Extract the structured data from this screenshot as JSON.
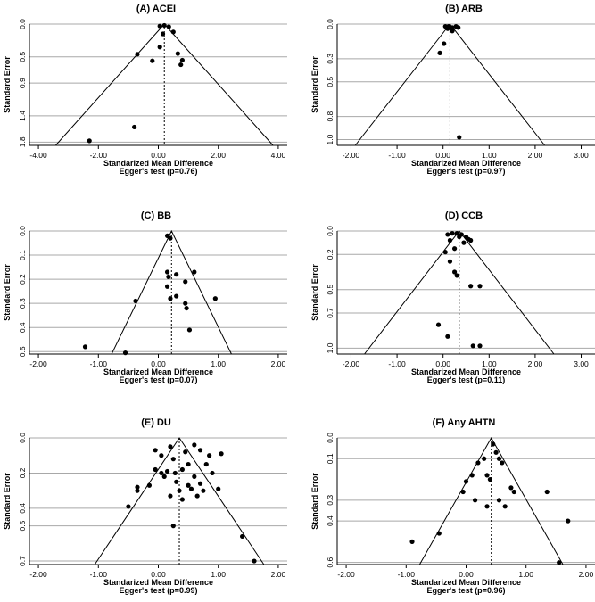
{
  "chart_data": [
    {
      "type": "scatter",
      "title": "(A) ACEI",
      "xlabel": "Standarized Mean Difference",
      "ylabel": "Standard Error",
      "egger": "Egger's test (p=0.76)",
      "xlim": [
        -4.3,
        4.3
      ],
      "ylim": [
        0,
        1.85
      ],
      "xticks": [
        -4,
        -2,
        0,
        2,
        4
      ],
      "xtick_labels": [
        "-4.00",
        "-2.00",
        "0.00",
        "2.00",
        "4.00"
      ],
      "yticks": [
        0,
        0.5,
        0.9,
        1.4,
        1.8
      ],
      "ytick_labels": [
        "0.0",
        "0.5",
        "0.9",
        "1.4",
        "1.8"
      ],
      "pooled": 0.2,
      "points": [
        [
          0.05,
          0.03
        ],
        [
          0.2,
          0.02
        ],
        [
          0.35,
          0.04
        ],
        [
          0.5,
          0.12
        ],
        [
          0.15,
          0.15
        ],
        [
          0.05,
          0.35
        ],
        [
          0.65,
          0.45
        ],
        [
          0.8,
          0.55
        ],
        [
          0.75,
          0.62
        ],
        [
          -0.2,
          0.56
        ],
        [
          -0.7,
          0.46
        ],
        [
          -0.8,
          1.57
        ],
        [
          -2.3,
          1.78
        ]
      ]
    },
    {
      "type": "scatter",
      "title": "(B) ARB",
      "xlabel": "Standarized Mean Difference",
      "ylabel": "Standard Error",
      "egger": "Egger's test (p=0.97)",
      "xlim": [
        -2.3,
        3.3
      ],
      "ylim": [
        0,
        1.05
      ],
      "xticks": [
        -2,
        -1,
        0,
        1,
        2,
        3
      ],
      "xtick_labels": [
        "-2.00",
        "-1.00",
        "0.00",
        "1.00",
        "2.00",
        "3.00"
      ],
      "yticks": [
        0,
        0.3,
        0.5,
        0.8,
        1.0
      ],
      "ytick_labels": [
        "0.0",
        "0.3",
        "0.5",
        "0.8",
        "1.0"
      ],
      "pooled": 0.15,
      "points": [
        [
          0.05,
          0.02
        ],
        [
          0.12,
          0.02
        ],
        [
          0.2,
          0.03
        ],
        [
          0.28,
          0.02
        ],
        [
          0.33,
          0.03
        ],
        [
          0.1,
          0.04
        ],
        [
          0.2,
          0.06
        ],
        [
          0.02,
          0.17
        ],
        [
          -0.07,
          0.25
        ],
        [
          0.35,
          0.98
        ]
      ]
    },
    {
      "type": "scatter",
      "title": "(C) BB",
      "xlabel": "Standarized Mean Difference",
      "ylabel": "Standard Error",
      "egger": "Egger's test (p=0.07)",
      "xlim": [
        -2.15,
        2.15
      ],
      "ylim": [
        0,
        0.51
      ],
      "xticks": [
        -2,
        -1,
        0,
        1,
        2
      ],
      "xtick_labels": [
        "-2.00",
        "-1.00",
        "0.00",
        "1.00",
        "2.00"
      ],
      "yticks": [
        0,
        0.1,
        0.2,
        0.3,
        0.4,
        0.5
      ],
      "ytick_labels": [
        "0.0",
        "0.1",
        "0.2",
        "0.3",
        "0.4",
        "0.5"
      ],
      "pooled": 0.22,
      "points": [
        [
          0.15,
          0.02
        ],
        [
          0.2,
          0.03
        ],
        [
          0.15,
          0.17
        ],
        [
          0.17,
          0.19
        ],
        [
          0.3,
          0.18
        ],
        [
          0.6,
          0.17
        ],
        [
          0.45,
          0.21
        ],
        [
          0.15,
          0.23
        ],
        [
          0.2,
          0.28
        ],
        [
          0.3,
          0.27
        ],
        [
          0.45,
          0.3
        ],
        [
          0.47,
          0.32
        ],
        [
          0.95,
          0.28
        ],
        [
          -0.38,
          0.29
        ],
        [
          0.52,
          0.41
        ],
        [
          -1.22,
          0.48
        ],
        [
          -0.55,
          0.505
        ]
      ]
    },
    {
      "type": "scatter",
      "title": "(D) CCB",
      "xlabel": "Standarized Mean Difference",
      "ylabel": "Standard Error",
      "egger": "Egger's test (p=0.11)",
      "xlim": [
        -2.3,
        3.3
      ],
      "ylim": [
        0,
        1.05
      ],
      "xticks": [
        -2,
        -1,
        0,
        1,
        2,
        3
      ],
      "xtick_labels": [
        "-2.00",
        "-1.00",
        "0.00",
        "1.00",
        "2.00",
        "3.00"
      ],
      "yticks": [
        0,
        0.2,
        0.5,
        0.7,
        1.0
      ],
      "ytick_labels": [
        "0.0",
        "0.2",
        "0.5",
        "0.7",
        "1.0"
      ],
      "pooled": 0.35,
      "points": [
        [
          0.1,
          0.03
        ],
        [
          0.2,
          0.02
        ],
        [
          0.3,
          0.02
        ],
        [
          0.4,
          0.03
        ],
        [
          0.5,
          0.05
        ],
        [
          0.55,
          0.07
        ],
        [
          0.35,
          0.05
        ],
        [
          0.15,
          0.08
        ],
        [
          0.45,
          0.1
        ],
        [
          0.6,
          0.08
        ],
        [
          0.25,
          0.15
        ],
        [
          0.05,
          0.18
        ],
        [
          0.15,
          0.26
        ],
        [
          0.25,
          0.35
        ],
        [
          0.3,
          0.38
        ],
        [
          0.6,
          0.47
        ],
        [
          0.8,
          0.47
        ],
        [
          -0.1,
          0.8
        ],
        [
          0.1,
          0.9
        ],
        [
          0.65,
          0.98
        ],
        [
          0.8,
          0.98
        ]
      ]
    },
    {
      "type": "scatter",
      "title": "(E) DU",
      "xlabel": "Standarized Mean Difference",
      "ylabel": "Standard Error",
      "egger": "Egger's test (p=0.99)",
      "xlim": [
        -2.15,
        2.15
      ],
      "ylim": [
        0,
        0.72
      ],
      "xticks": [
        -2,
        -1,
        0,
        1,
        2
      ],
      "xtick_labels": [
        "-2.00",
        "-1.00",
        "0.00",
        "1.00",
        "2.00"
      ],
      "yticks": [
        0,
        0.2,
        0.4,
        0.5,
        0.7
      ],
      "ytick_labels": [
        "0.0",
        "0.2",
        "0.4",
        "0.5",
        "0.7"
      ],
      "pooled": 0.35,
      "points": [
        [
          -0.05,
          0.07
        ],
        [
          0.2,
          0.05
        ],
        [
          0.45,
          0.08
        ],
        [
          0.6,
          0.04
        ],
        [
          0.7,
          0.07
        ],
        [
          0.85,
          0.1
        ],
        [
          1.05,
          0.09
        ],
        [
          0.05,
          0.1
        ],
        [
          0.25,
          0.12
        ],
        [
          0.5,
          0.15
        ],
        [
          0.8,
          0.15
        ],
        [
          -0.05,
          0.18
        ],
        [
          0.05,
          0.2
        ],
        [
          0.15,
          0.19
        ],
        [
          0.28,
          0.2
        ],
        [
          0.4,
          0.18
        ],
        [
          0.6,
          0.22
        ],
        [
          0.9,
          0.2
        ],
        [
          0.1,
          0.22
        ],
        [
          0.3,
          0.25
        ],
        [
          0.5,
          0.27
        ],
        [
          0.7,
          0.26
        ],
        [
          -0.15,
          0.27
        ],
        [
          0.35,
          0.3
        ],
        [
          0.55,
          0.29
        ],
        [
          0.75,
          0.3
        ],
        [
          1.0,
          0.29
        ],
        [
          -0.35,
          0.3
        ],
        [
          -0.35,
          0.28
        ],
        [
          0.2,
          0.33
        ],
        [
          0.4,
          0.35
        ],
        [
          0.65,
          0.33
        ],
        [
          -0.5,
          0.39
        ],
        [
          0.25,
          0.5
        ],
        [
          1.4,
          0.56
        ],
        [
          1.6,
          0.7
        ]
      ]
    },
    {
      "type": "scatter",
      "title": "(F) Any AHTN",
      "xlabel": "Standarized Mean Difference",
      "ylabel": "Standard Error",
      "egger": "Egger's test (p=0.96)",
      "xlim": [
        -2.15,
        2.15
      ],
      "ylim": [
        0,
        0.61
      ],
      "xticks": [
        -2,
        -1,
        0,
        1,
        2
      ],
      "xtick_labels": [
        "-2.00",
        "-1.00",
        "0.00",
        "1.00",
        "2.00"
      ],
      "yticks": [
        0,
        0.1,
        0.3,
        0.4,
        0.6
      ],
      "ytick_labels": [
        "0.0",
        "0.1",
        "0.3",
        "0.4",
        "0.6"
      ],
      "pooled": 0.42,
      "points": [
        [
          0.45,
          0.03
        ],
        [
          0.5,
          0.07
        ],
        [
          0.55,
          0.1
        ],
        [
          0.6,
          0.12
        ],
        [
          0.3,
          0.1
        ],
        [
          0.2,
          0.12
        ],
        [
          0.1,
          0.18
        ],
        [
          0.35,
          0.18
        ],
        [
          0.4,
          0.2
        ],
        [
          0.0,
          0.21
        ],
        [
          0.75,
          0.24
        ],
        [
          -0.05,
          0.26
        ],
        [
          0.8,
          0.26
        ],
        [
          1.35,
          0.26
        ],
        [
          0.55,
          0.3
        ],
        [
          0.15,
          0.3
        ],
        [
          0.35,
          0.33
        ],
        [
          0.65,
          0.33
        ],
        [
          1.7,
          0.4
        ],
        [
          -0.45,
          0.46
        ],
        [
          -0.9,
          0.5
        ],
        [
          1.55,
          0.6
        ]
      ]
    }
  ]
}
